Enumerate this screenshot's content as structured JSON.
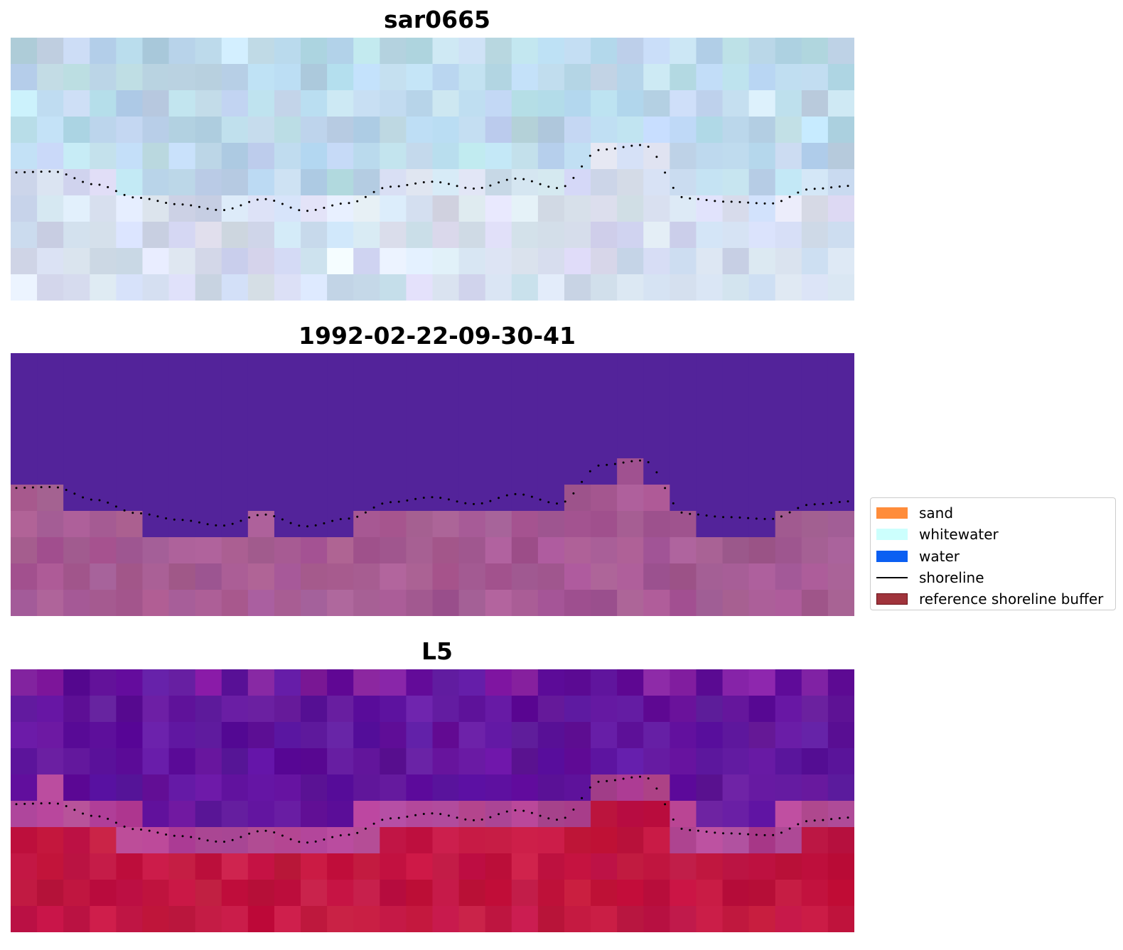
{
  "panels": [
    {
      "id": "rgb",
      "title": "sar0665",
      "style": "rgb"
    },
    {
      "id": "classified",
      "title": "1992-02-22-09-30-41",
      "style": "classified"
    },
    {
      "id": "index",
      "title": "L5",
      "style": "index"
    }
  ],
  "shoreline_profile": [
    0.513,
    0.509,
    0.558,
    0.609,
    0.634,
    0.656,
    0.614,
    0.659,
    0.629,
    0.567,
    0.548,
    0.574,
    0.536,
    0.572,
    0.426,
    0.408,
    0.611,
    0.624,
    0.631,
    0.575,
    0.563
  ],
  "legend": {
    "items": [
      {
        "label": "sand",
        "kind": "patch",
        "color": "#ff8c3a",
        "edge": "#ff8c3a"
      },
      {
        "label": "whitewater",
        "kind": "patch",
        "color": "#ccfffd",
        "edge": "#ccfffd"
      },
      {
        "label": "water",
        "kind": "patch",
        "color": "#0b5ff2",
        "edge": "#0b5ff2"
      },
      {
        "label": "shoreline",
        "kind": "line",
        "color": "#000000"
      },
      {
        "label": "reference shoreline buffer",
        "kind": "patch",
        "color": "#a0343c",
        "edge": "#6b0f17"
      }
    ]
  },
  "colors": {
    "water_class": "#53239a",
    "land_class": "#a65a93",
    "rgb_sky": "#bcd9ec",
    "rgb_land": "#d5dff0",
    "index_water": "#62169e",
    "index_land": "#c21642",
    "shoreline_dots": "#000000"
  }
}
